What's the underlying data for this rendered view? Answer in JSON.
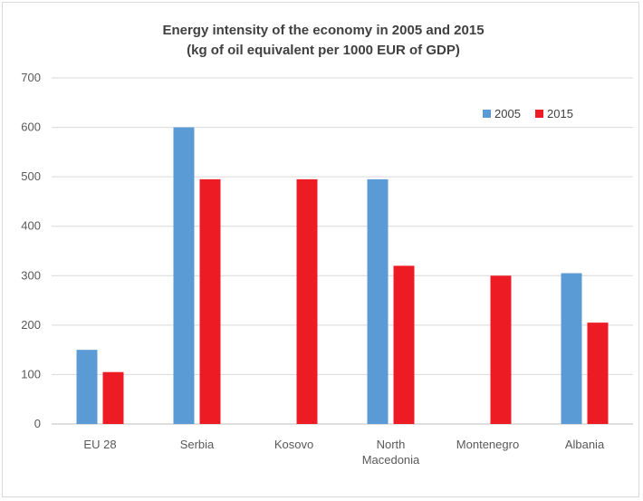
{
  "chart_data": {
    "type": "bar",
    "title": "Energy intensity of the economy in 2005 and 2015",
    "subtitle": "(kg of oil equivalent per 1000 EUR of GDP)",
    "xlabel": "",
    "ylabel": "",
    "ylim": [
      0,
      700
    ],
    "yticks": [
      0,
      100,
      200,
      300,
      400,
      500,
      600,
      700
    ],
    "grid": true,
    "legend_position": "top-right",
    "categories": [
      [
        "EU 28"
      ],
      [
        "Serbia"
      ],
      [
        "Kosovo"
      ],
      [
        "North",
        "Macedonia"
      ],
      [
        "Montenegro"
      ],
      [
        "Albania"
      ]
    ],
    "series": [
      {
        "name": "2005",
        "color": "#5b9bd5",
        "values": [
          150,
          600,
          null,
          495,
          null,
          305
        ]
      },
      {
        "name": "2015",
        "color": "#ed1c24",
        "values": [
          105,
          495,
          495,
          320,
          300,
          205
        ]
      }
    ]
  }
}
